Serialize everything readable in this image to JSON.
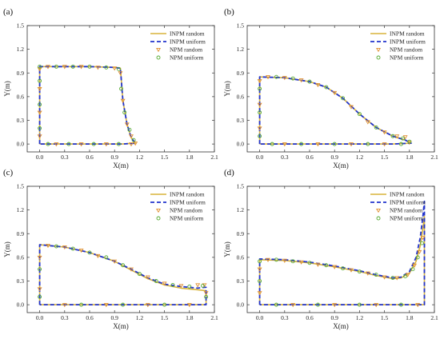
{
  "figure": {
    "styles": {
      "INPM random": {
        "color": "#d8b43a",
        "dash": "",
        "width": 1.6
      },
      "INPM uniform": {
        "color": "#2233cc",
        "dash": "5,3",
        "width": 1.8
      },
      "NPM random": {
        "color": "#e09030",
        "marker": "triangle-down"
      },
      "NPM uniform": {
        "color": "#55aa33",
        "marker": "circle"
      }
    }
  },
  "chart_data": [
    {
      "type": "line",
      "panel_label": "(a)",
      "xlabel": "X(m)",
      "ylabel": "Y(m)",
      "xlim": [
        -0.15,
        2.1
      ],
      "ylim": [
        -0.1,
        1.5
      ],
      "xticks": [
        "0.0",
        "0.3",
        "0.6",
        "0.9",
        "1.2",
        "1.5",
        "1.8",
        "2.1"
      ],
      "yticks": [
        "0.0",
        "0.3",
        "0.6",
        "0.9",
        "1.2",
        "1.5"
      ],
      "legend": [
        "INPM random",
        "INPM uniform",
        "NPM random",
        "NPM uniform"
      ],
      "legend_position": "top-right",
      "series": [
        {
          "name": "INPM random",
          "x": [
            0,
            0,
            0.3,
            0.6,
            0.9,
            0.97,
            1.0,
            1.05,
            1.1,
            1.15,
            1.0,
            0.6,
            0.3,
            0
          ],
          "y": [
            0,
            0.98,
            0.98,
            0.98,
            0.97,
            0.96,
            0.55,
            0.25,
            0.08,
            0.01,
            0,
            0,
            0,
            0
          ]
        },
        {
          "name": "INPM uniform",
          "x": [
            0,
            0,
            0.3,
            0.6,
            0.9,
            0.97,
            1.0,
            1.05,
            1.1,
            1.15,
            1.0,
            0.6,
            0.3,
            0
          ],
          "y": [
            0,
            0.98,
            0.98,
            0.98,
            0.97,
            0.96,
            0.55,
            0.25,
            0.08,
            0.01,
            0,
            0,
            0,
            0
          ]
        },
        {
          "name": "NPM random",
          "x": [
            0,
            0,
            0,
            0,
            0.1,
            0.3,
            0.5,
            0.7,
            0.9,
            0.97,
            1.0,
            1.05,
            1.1,
            1.15,
            0.2,
            0.5,
            0.8,
            1.1
          ],
          "y": [
            0.1,
            0.4,
            0.7,
            0.95,
            0.98,
            0.98,
            0.98,
            0.97,
            0.96,
            0.9,
            0.55,
            0.25,
            0.1,
            0.01,
            0,
            0,
            0,
            0
          ]
        },
        {
          "name": "NPM uniform",
          "x": [
            0,
            0,
            0,
            0,
            0.2,
            0.4,
            0.6,
            0.8,
            0.95,
            0.98,
            1.02,
            1.08,
            1.13,
            0.1,
            0.35,
            0.65,
            0.95
          ],
          "y": [
            0.2,
            0.5,
            0.8,
            0.98,
            0.98,
            0.98,
            0.98,
            0.97,
            0.95,
            0.7,
            0.4,
            0.18,
            0.05,
            0,
            0,
            0,
            0
          ]
        }
      ]
    },
    {
      "type": "line",
      "panel_label": "(b)",
      "xlabel": "X(m)",
      "ylabel": "Y(m)",
      "xlim": [
        -0.15,
        2.1
      ],
      "ylim": [
        -0.1,
        1.5
      ],
      "xticks": [
        "0.0",
        "0.3",
        "0.6",
        "0.9",
        "1.2",
        "1.5",
        "1.8",
        "2.1"
      ],
      "yticks": [
        "0.0",
        "0.3",
        "0.6",
        "0.9",
        "1.2",
        "1.5"
      ],
      "legend": [
        "INPM random",
        "INPM uniform",
        "NPM random",
        "NPM uniform"
      ],
      "legend_position": "top-right",
      "series": [
        {
          "name": "INPM random",
          "x": [
            0,
            0,
            0.3,
            0.6,
            0.8,
            1.0,
            1.2,
            1.4,
            1.6,
            1.75,
            1.82,
            1.6,
            1.2,
            0.6,
            0
          ],
          "y": [
            0,
            0.85,
            0.84,
            0.79,
            0.72,
            0.58,
            0.38,
            0.21,
            0.1,
            0.05,
            0.01,
            0,
            0,
            0,
            0
          ]
        },
        {
          "name": "INPM uniform",
          "x": [
            0,
            0,
            0.3,
            0.6,
            0.8,
            1.0,
            1.2,
            1.4,
            1.6,
            1.75,
            1.82,
            1.6,
            1.2,
            0.6,
            0
          ],
          "y": [
            0,
            0.85,
            0.84,
            0.79,
            0.72,
            0.58,
            0.38,
            0.21,
            0.1,
            0.05,
            0.01,
            0,
            0,
            0,
            0
          ]
        },
        {
          "name": "NPM random",
          "x": [
            0,
            0,
            0,
            0.1,
            0.3,
            0.5,
            0.7,
            0.9,
            1.1,
            1.3,
            1.5,
            1.65,
            1.75,
            1.8,
            0.3,
            0.7,
            1.1,
            1.5
          ],
          "y": [
            0.2,
            0.5,
            0.8,
            0.85,
            0.84,
            0.81,
            0.75,
            0.65,
            0.47,
            0.28,
            0.15,
            0.1,
            0.09,
            0.02,
            0,
            0,
            0,
            0
          ]
        },
        {
          "name": "NPM uniform",
          "x": [
            0,
            0,
            0,
            0.2,
            0.4,
            0.6,
            0.8,
            1.0,
            1.2,
            1.4,
            1.6,
            1.72,
            1.8,
            0.15,
            0.5,
            0.9,
            1.3,
            1.7
          ],
          "y": [
            0.1,
            0.4,
            0.7,
            0.85,
            0.83,
            0.79,
            0.72,
            0.58,
            0.38,
            0.21,
            0.1,
            0.07,
            0.03,
            0,
            0,
            0,
            0,
            0
          ]
        }
      ]
    },
    {
      "type": "line",
      "panel_label": "(c)",
      "xlabel": "X(m)",
      "ylabel": "Y(m)",
      "xlim": [
        -0.15,
        2.1
      ],
      "ylim": [
        -0.1,
        1.5
      ],
      "xticks": [
        "0.0",
        "0.3",
        "0.6",
        "0.9",
        "1.2",
        "1.5",
        "1.8",
        "2.1"
      ],
      "yticks": [
        "0.0",
        "0.3",
        "0.6",
        "0.9",
        "1.2",
        "1.5"
      ],
      "legend": [
        "INPM random",
        "INPM uniform",
        "NPM random",
        "NPM uniform"
      ],
      "legend_position": "top-right",
      "series": [
        {
          "name": "INPM random",
          "x": [
            0,
            0,
            0.3,
            0.6,
            0.9,
            1.1,
            1.3,
            1.5,
            1.7,
            1.9,
            1.98,
            2.0,
            2.0,
            1.5,
            1.0,
            0.5,
            0
          ],
          "y": [
            0,
            0.76,
            0.73,
            0.66,
            0.55,
            0.44,
            0.33,
            0.25,
            0.21,
            0.19,
            0.18,
            0.18,
            0,
            0,
            0,
            0,
            0
          ]
        },
        {
          "name": "INPM uniform",
          "x": [
            0,
            0,
            0.3,
            0.6,
            0.9,
            1.1,
            1.3,
            1.5,
            1.7,
            1.9,
            1.98,
            2.0,
            2.0,
            1.5,
            1.0,
            0.5,
            0
          ],
          "y": [
            0,
            0.76,
            0.73,
            0.66,
            0.55,
            0.45,
            0.34,
            0.26,
            0.23,
            0.21,
            0.22,
            0.22,
            0,
            0,
            0,
            0,
            0
          ]
        },
        {
          "name": "NPM random",
          "x": [
            0,
            0,
            0.1,
            0.3,
            0.5,
            0.7,
            0.9,
            1.1,
            1.3,
            1.5,
            1.7,
            1.9,
            1.98,
            2.0,
            0.3,
            0.8,
            1.3,
            1.8
          ],
          "y": [
            0.2,
            0.6,
            0.75,
            0.73,
            0.69,
            0.62,
            0.55,
            0.45,
            0.35,
            0.27,
            0.24,
            0.25,
            0.25,
            0.15,
            0,
            0,
            0,
            0
          ]
        },
        {
          "name": "NPM uniform",
          "x": [
            0,
            0,
            0.2,
            0.4,
            0.6,
            0.8,
            1.0,
            1.2,
            1.4,
            1.6,
            1.8,
            1.96,
            2.0,
            0.5,
            1.0,
            1.5
          ],
          "y": [
            0.1,
            0.45,
            0.74,
            0.71,
            0.66,
            0.6,
            0.5,
            0.39,
            0.3,
            0.25,
            0.23,
            0.24,
            0.1,
            0,
            0,
            0
          ]
        }
      ]
    },
    {
      "type": "line",
      "panel_label": "(d)",
      "xlabel": "X(m)",
      "ylabel": "Y(m)",
      "xlim": [
        -0.15,
        2.1
      ],
      "ylim": [
        -0.1,
        1.5
      ],
      "xticks": [
        "0.0",
        "0.3",
        "0.6",
        "0.9",
        "1.2",
        "1.5",
        "1.8",
        "2.1"
      ],
      "yticks": [
        "0.0",
        "0.3",
        "0.6",
        "0.9",
        "1.2",
        "1.5"
      ],
      "legend": [
        "INPM random",
        "INPM uniform",
        "NPM random",
        "NPM uniform"
      ],
      "legend_position": "top-right",
      "series": [
        {
          "name": "INPM random",
          "x": [
            0,
            0,
            0.3,
            0.6,
            0.9,
            1.2,
            1.4,
            1.6,
            1.7,
            1.8,
            1.88,
            1.93,
            1.96,
            1.98,
            1.98,
            1.5,
            1.0,
            0.5,
            0
          ],
          "y": [
            0,
            0.57,
            0.56,
            0.53,
            0.48,
            0.42,
            0.37,
            0.33,
            0.34,
            0.4,
            0.55,
            0.75,
            0.95,
            1.12,
            0,
            0,
            0,
            0,
            0
          ]
        },
        {
          "name": "INPM uniform",
          "x": [
            0,
            0,
            0.3,
            0.6,
            0.9,
            1.2,
            1.4,
            1.6,
            1.7,
            1.8,
            1.88,
            1.93,
            1.96,
            1.98,
            1.98,
            1.5,
            1.0,
            0.5,
            0
          ],
          "y": [
            0,
            0.58,
            0.57,
            0.54,
            0.49,
            0.43,
            0.38,
            0.34,
            0.35,
            0.42,
            0.6,
            0.85,
            1.1,
            1.31,
            0,
            0,
            0,
            0,
            0
          ]
        },
        {
          "name": "NPM random",
          "x": [
            0,
            0,
            0.1,
            0.3,
            0.5,
            0.7,
            0.9,
            1.1,
            1.3,
            1.5,
            1.65,
            1.78,
            1.86,
            1.92,
            1.96,
            0.4,
            0.9,
            1.4,
            1.9
          ],
          "y": [
            0.15,
            0.45,
            0.57,
            0.56,
            0.54,
            0.51,
            0.48,
            0.44,
            0.4,
            0.35,
            0.34,
            0.38,
            0.5,
            0.67,
            0.85,
            0,
            0,
            0,
            0
          ]
        },
        {
          "name": "NPM uniform",
          "x": [
            0,
            0,
            0.2,
            0.4,
            0.6,
            0.8,
            1.0,
            1.2,
            1.4,
            1.6,
            1.75,
            1.84,
            1.9,
            1.95,
            0.2,
            0.7,
            1.2,
            1.7
          ],
          "y": [
            0.3,
            0.55,
            0.57,
            0.55,
            0.53,
            0.5,
            0.46,
            0.42,
            0.38,
            0.34,
            0.36,
            0.45,
            0.6,
            0.78,
            0,
            0,
            0,
            0
          ]
        }
      ]
    }
  ]
}
